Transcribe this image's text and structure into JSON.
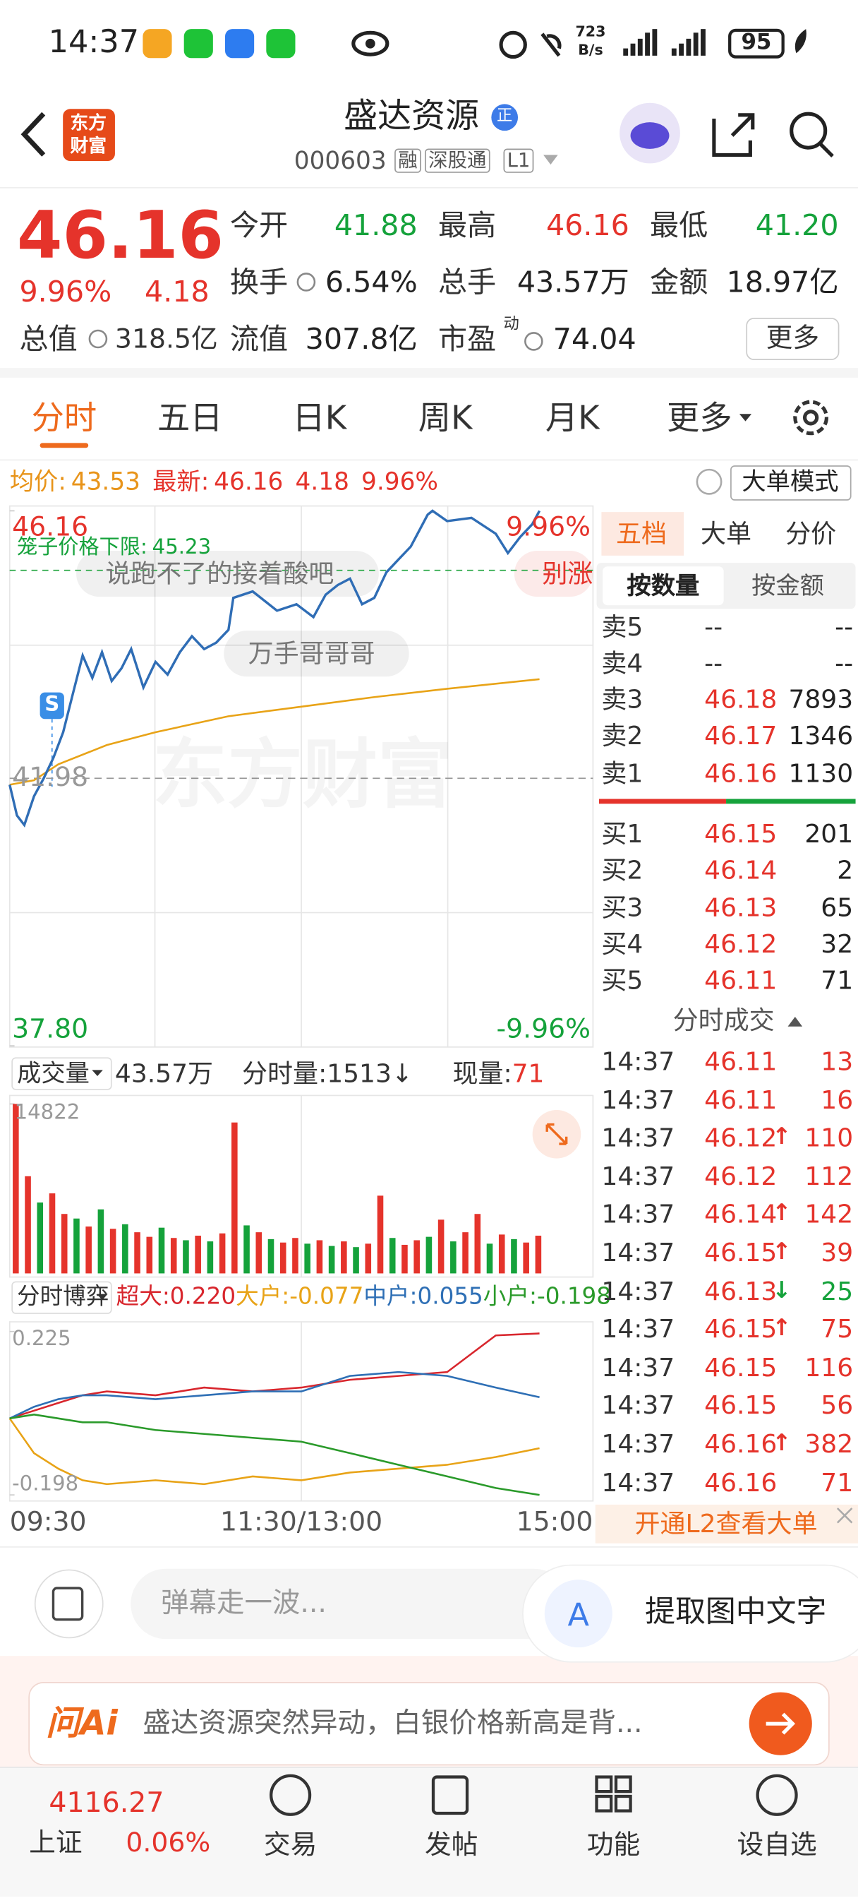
{
  "status_bar": {
    "time": "14:37",
    "net_speed": "723",
    "net_unit": "B/s",
    "battery": "95"
  },
  "header": {
    "logo": [
      "东方",
      "财富"
    ],
    "title": "盛达资源",
    "badge": "正",
    "code": "000603",
    "tags": [
      "融",
      "深股通",
      "L1"
    ]
  },
  "quote": {
    "price": "46.16",
    "change_pct": "9.96%",
    "change": "4.18",
    "total_value": {
      "label": "总值",
      "value": "318.5亿"
    },
    "fields": [
      {
        "label": "今开",
        "value": "41.88",
        "color": "#15a23b"
      },
      {
        "label": "最高",
        "value": "46.16",
        "color": "#e5332b"
      },
      {
        "label": "最低",
        "value": "41.20",
        "color": "#15a23b"
      },
      {
        "label": "换手",
        "value": "6.54%"
      },
      {
        "label": "总手",
        "value": "43.57万"
      },
      {
        "label": "金额",
        "value": "18.97亿"
      },
      {
        "label": "流值",
        "value": "307.8亿"
      },
      {
        "label": "市盈",
        "value": "74.04",
        "note": "动"
      }
    ],
    "more": "更多"
  },
  "tabs": [
    "分时",
    "五日",
    "日K",
    "周K",
    "月K",
    "更多"
  ],
  "info_bar": {
    "avg_label": "均价:",
    "avg": "43.53",
    "latest_label": "最新:",
    "latest": "46.16",
    "change": "4.18",
    "change_pct": "9.96%",
    "mode_button": "大单模式"
  },
  "chart": {
    "type": "line",
    "xlim": [
      0,
      240
    ],
    "ylim": [
      37.8,
      46.16
    ],
    "yticks": [
      46.16,
      41.98,
      {
        "value": 37.8,
        "label": "37.80"
      }
    ],
    "pct_labels": [
      "9.96%",
      "-9.96%"
    ],
    "price": {
      "color": "#2f6db5",
      "x": [
        0,
        3,
        6,
        10,
        14,
        18,
        22,
        26,
        30,
        34,
        38,
        42,
        46,
        50,
        55,
        60,
        65,
        70,
        75,
        80,
        85,
        90,
        92,
        100,
        110,
        118,
        125,
        130,
        135,
        140,
        145,
        150,
        155,
        160,
        165,
        172,
        174,
        180,
        190,
        200,
        205,
        210,
        215,
        218
      ],
      "values": [
        41.88,
        41.4,
        41.25,
        41.7,
        41.98,
        42.3,
        42.7,
        43.3,
        43.9,
        43.55,
        43.95,
        43.5,
        43.7,
        44.0,
        43.4,
        43.8,
        43.6,
        43.95,
        44.2,
        44.0,
        44.1,
        44.3,
        44.8,
        44.9,
        44.6,
        44.7,
        44.5,
        44.85,
        45.0,
        45.1,
        44.7,
        44.8,
        45.2,
        45.4,
        45.6,
        46.1,
        46.16,
        46.0,
        46.05,
        45.8,
        45.5,
        45.75,
        45.95,
        46.16
      ]
    },
    "avg_price": {
      "color": "#e8a317",
      "x": [
        0,
        10,
        20,
        40,
        60,
        90,
        120,
        150,
        180,
        218
      ],
      "values": [
        41.88,
        41.95,
        42.2,
        42.5,
        42.7,
        42.95,
        43.1,
        43.25,
        43.38,
        43.53
      ]
    },
    "limit_label": "笼子价格下限:",
    "limit_value": 45.23,
    "danmaku": [
      "说跑不了的接着酸吧",
      "万手哥哥哥",
      "别涨"
    ],
    "watermark": "东方财富",
    "marker": "S"
  },
  "volume": {
    "type": "bar",
    "label": "成交量",
    "total": "43.57万",
    "minute_label": "分时量:1513↓",
    "current_label": "现量:",
    "current": "71",
    "ylim": [
      0,
      14822
    ],
    "yticks": [
      14822
    ],
    "up_color": "#e5332b",
    "down_color": "#15a23b",
    "x": [
      2.5,
      7.5,
      12.5,
      17.5,
      22.5,
      27.5,
      32.5,
      37.5,
      42.5,
      47.5,
      52.5,
      57.5,
      62.5,
      67.5,
      72.5,
      77.5,
      82.5,
      87.5,
      92.5,
      97.5,
      102.5,
      107.5,
      112.5,
      117.5,
      122.5,
      127.5,
      132.5,
      137.5,
      142.5,
      147.5,
      152.5,
      157.5,
      162.5,
      167.5,
      172.5,
      177.5,
      182.5,
      187.5,
      192.5,
      197.5,
      202.5,
      207.5,
      212.5,
      217.5
    ],
    "values": [
      14822,
      8500,
      6200,
      7000,
      5200,
      4800,
      4100,
      5600,
      3900,
      4300,
      3600,
      3200,
      4000,
      3100,
      2900,
      3300,
      2800,
      3500,
      13200,
      4200,
      3600,
      3000,
      2700,
      3100,
      2600,
      2900,
      2400,
      2800,
      2300,
      2600,
      6800,
      3100,
      2500,
      2900,
      3200,
      4700,
      2800,
      3600,
      5200,
      2600,
      3400,
      3000,
      2700,
      3300
    ],
    "directions": [
      "up",
      "up",
      "down",
      "up",
      "up",
      "down",
      "up",
      "down",
      "up",
      "down",
      "up",
      "up",
      "down",
      "up",
      "down",
      "up",
      "down",
      "up",
      "up",
      "down",
      "up",
      "down",
      "up",
      "up",
      "down",
      "up",
      "down",
      "up",
      "down",
      "up",
      "up",
      "down",
      "up",
      "up",
      "down",
      "up",
      "down",
      "up",
      "up",
      "down",
      "up",
      "down",
      "up",
      "up"
    ]
  },
  "flow": {
    "type": "line",
    "label": "分时博弈",
    "ylim": [
      -0.198,
      0.225
    ],
    "yticks": [
      0.225,
      -0.198
    ],
    "x": [
      0,
      10,
      20,
      30,
      40,
      60,
      80,
      100,
      120,
      140,
      160,
      180,
      200,
      218
    ],
    "series": [
      {
        "name": "超大:",
        "last": "0.220",
        "color": "#d8262d",
        "values": [
          0,
          0.02,
          0.04,
          0.06,
          0.07,
          0.06,
          0.08,
          0.07,
          0.08,
          0.1,
          0.11,
          0.12,
          0.215,
          0.22
        ]
      },
      {
        "name": "大户:",
        "last": "-0.077",
        "color": "#e8a317",
        "values": [
          0,
          -0.09,
          -0.13,
          -0.16,
          -0.17,
          -0.16,
          -0.17,
          -0.15,
          -0.16,
          -0.14,
          -0.13,
          -0.12,
          -0.1,
          -0.077
        ]
      },
      {
        "name": "中户:",
        "last": "0.055",
        "color": "#2e6fb5",
        "values": [
          0,
          0.03,
          0.05,
          0.06,
          0.06,
          0.05,
          0.06,
          0.07,
          0.07,
          0.11,
          0.12,
          0.11,
          0.08,
          0.055
        ]
      },
      {
        "name": "小户:",
        "last": "-0.198",
        "color": "#2a9a2a",
        "values": [
          0,
          0.01,
          0,
          -0.01,
          -0.01,
          -0.03,
          -0.04,
          -0.05,
          -0.06,
          -0.09,
          -0.12,
          -0.15,
          -0.18,
          -0.198
        ]
      }
    ]
  },
  "time_axis": [
    "09:30",
    "11:30/13:00",
    "15:00"
  ],
  "order_book": {
    "tabs": [
      "五档",
      "大单",
      "分价"
    ],
    "modes": [
      "按数量",
      "按金额"
    ],
    "asks": [
      {
        "label": "卖5",
        "price": "--",
        "volume": "--"
      },
      {
        "label": "卖4",
        "price": "--",
        "volume": "--"
      },
      {
        "label": "卖3",
        "price": "46.18",
        "volume": "7893"
      },
      {
        "label": "卖2",
        "price": "46.17",
        "volume": "1346"
      },
      {
        "label": "卖1",
        "price": "46.16",
        "volume": "1130"
      }
    ],
    "bids": [
      {
        "label": "买1",
        "price": "46.15",
        "volume": "201"
      },
      {
        "label": "买2",
        "price": "46.14",
        "volume": "2"
      },
      {
        "label": "买3",
        "price": "46.13",
        "volume": "65"
      },
      {
        "label": "买4",
        "price": "46.12",
        "volume": "32"
      },
      {
        "label": "买5",
        "price": "46.11",
        "volume": "71"
      }
    ]
  },
  "trades": {
    "title": "分时成交",
    "rows": [
      {
        "time": "14:37",
        "price": "46.11",
        "volume": "13"
      },
      {
        "time": "14:37",
        "price": "46.11",
        "volume": "16"
      },
      {
        "time": "14:37",
        "price": "46.12",
        "arrow": "↑",
        "volume": "110"
      },
      {
        "time": "14:37",
        "price": "46.12",
        "volume": "112"
      },
      {
        "time": "14:37",
        "price": "46.14",
        "arrow": "↑",
        "volume": "142"
      },
      {
        "time": "14:37",
        "price": "46.15",
        "arrow": "↑",
        "volume": "39"
      },
      {
        "time": "14:37",
        "price": "46.13",
        "arrow": "↓",
        "volume": "25"
      },
      {
        "time": "14:37",
        "price": "46.15",
        "arrow": "↑",
        "volume": "75"
      },
      {
        "time": "14:37",
        "price": "46.15",
        "volume": "116"
      },
      {
        "time": "14:37",
        "price": "46.15",
        "volume": "56"
      },
      {
        "time": "14:37",
        "price": "46.16",
        "arrow": "↑",
        "volume": "382"
      },
      {
        "time": "14:37",
        "price": "46.16",
        "volume": "71"
      }
    ]
  },
  "l2_banner": "开通L2查看大单",
  "input": {
    "placeholder": "弹幕走一波...",
    "ocr": "提取图中文字"
  },
  "ai": {
    "brand": "问Ai",
    "text": "盛达资源突然异动，白银价格新高是背..."
  },
  "nav": {
    "index_value": "4116.27",
    "index_name": "上证",
    "index_pct": "0.06%",
    "items": [
      "交易",
      "发帖",
      "功能",
      "设自选"
    ]
  }
}
